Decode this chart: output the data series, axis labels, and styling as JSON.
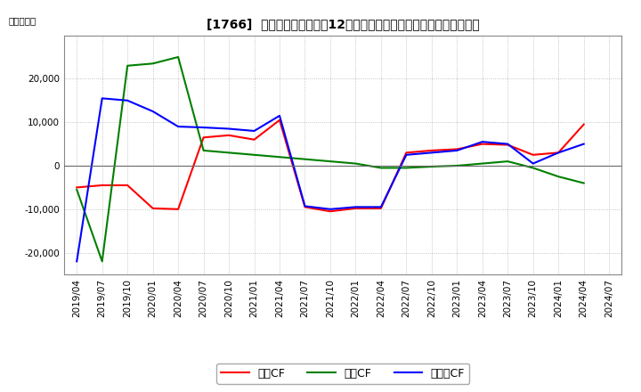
{
  "title": "[1766]  キャッシュフローの12か月移動合計の対前年同期増減額の推移",
  "ylabel": "（百万円）",
  "background_color": "#ffffff",
  "plot_bg_color": "#ffffff",
  "grid_color": "#aaaaaa",
  "x_labels": [
    "2019/04",
    "2019/07",
    "2019/10",
    "2020/01",
    "2020/04",
    "2020/07",
    "2020/10",
    "2021/01",
    "2021/04",
    "2021/07",
    "2021/10",
    "2022/01",
    "2022/04",
    "2022/07",
    "2022/10",
    "2023/01",
    "2023/04",
    "2023/07",
    "2023/10",
    "2024/01",
    "2024/04",
    "2024/07"
  ],
  "series_order": [
    "営業CF",
    "投資CF",
    "フリーCF"
  ],
  "series": {
    "営業CF": {
      "color": "#ff0000",
      "data": [
        -5000,
        -4500,
        -4500,
        -9800,
        -10000,
        6500,
        7000,
        6000,
        10500,
        -9500,
        -10500,
        -9800,
        -9800,
        3000,
        3500,
        3800,
        5000,
        4800,
        2500,
        3000,
        9500,
        null
      ]
    },
    "投資CF": {
      "color": "#008000",
      "data": [
        -5500,
        -22000,
        23000,
        23500,
        25000,
        3500,
        3000,
        2500,
        2000,
        1500,
        1000,
        500,
        -500,
        -500,
        -200,
        0,
        500,
        1000,
        -500,
        -2500,
        -4000,
        null
      ]
    },
    "フリーCF": {
      "color": "#0000ff",
      "data": [
        -22000,
        15500,
        15000,
        12500,
        9000,
        8800,
        8500,
        8000,
        11500,
        -9300,
        -10000,
        -9500,
        -9500,
        2500,
        3000,
        3500,
        5500,
        5000,
        500,
        3000,
        5000,
        null
      ]
    }
  },
  "ylim": [
    -25000,
    30000
  ],
  "yticks": [
    -20000,
    -10000,
    0,
    10000,
    20000
  ],
  "legend_labels": [
    "営業CF",
    "投資CF",
    "フリーCF"
  ],
  "legend_colors": [
    "#ff0000",
    "#008000",
    "#0000ff"
  ]
}
